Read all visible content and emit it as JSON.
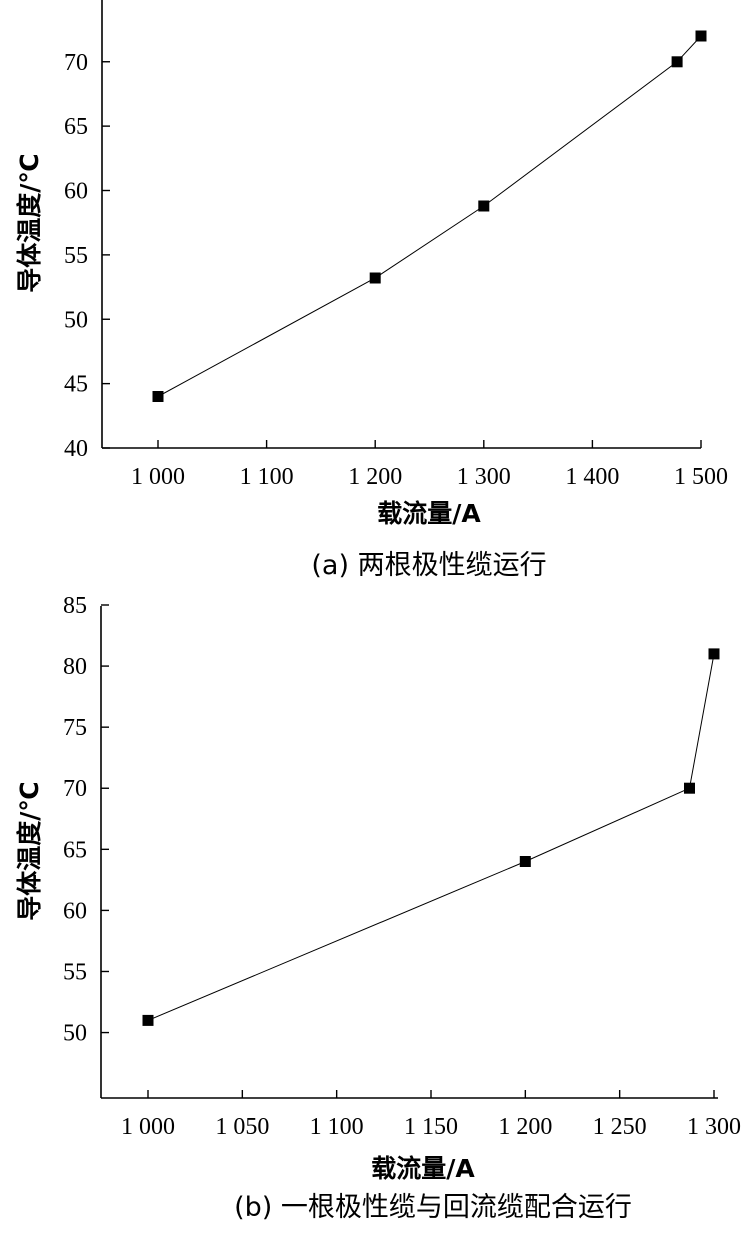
{
  "chart_data": [
    {
      "id": "a",
      "type": "line",
      "caption": "(a) 两根极性缆运行",
      "xlabel": "载流量/A",
      "ylabel": "导体温度/℃",
      "xlim": [
        1000,
        1500
      ],
      "ylim": [
        40,
        72
      ],
      "x_ticks": [
        1000,
        1100,
        1200,
        1300,
        1400,
        1500
      ],
      "x_tick_labels": [
        "1 000",
        "1 100",
        "1 200",
        "1 300",
        "1 400",
        "1 500"
      ],
      "y_ticks": [
        40,
        45,
        50,
        55,
        60,
        65,
        70
      ],
      "y_tick_labels": [
        "40",
        "45",
        "50",
        "55",
        "60",
        "65",
        "70"
      ],
      "series": [
        {
          "x": [
            1000,
            1200,
            1300,
            1478,
            1500
          ],
          "y": [
            44,
            53.2,
            58.8,
            70,
            72
          ]
        }
      ]
    },
    {
      "id": "b",
      "type": "line",
      "caption": "(b) 一根极性缆与回流缆配合运行",
      "xlabel": "载流量/A",
      "ylabel": "导体温度/℃",
      "xlim": [
        1000,
        1300
      ],
      "ylim": [
        48,
        85
      ],
      "x_ticks": [
        1000,
        1050,
        1100,
        1150,
        1200,
        1250,
        1300
      ],
      "x_tick_labels": [
        "1 000",
        "1 050",
        "1 100",
        "1 150",
        "1 200",
        "1 250",
        "1 300"
      ],
      "y_ticks": [
        50,
        55,
        60,
        65,
        70,
        75,
        80,
        85
      ],
      "y_tick_labels": [
        "50",
        "55",
        "60",
        "65",
        "70",
        "75",
        "80",
        "85"
      ],
      "series": [
        {
          "x": [
            1000,
            1200,
            1287,
            1300
          ],
          "y": [
            51,
            64,
            70,
            81
          ]
        }
      ]
    }
  ]
}
